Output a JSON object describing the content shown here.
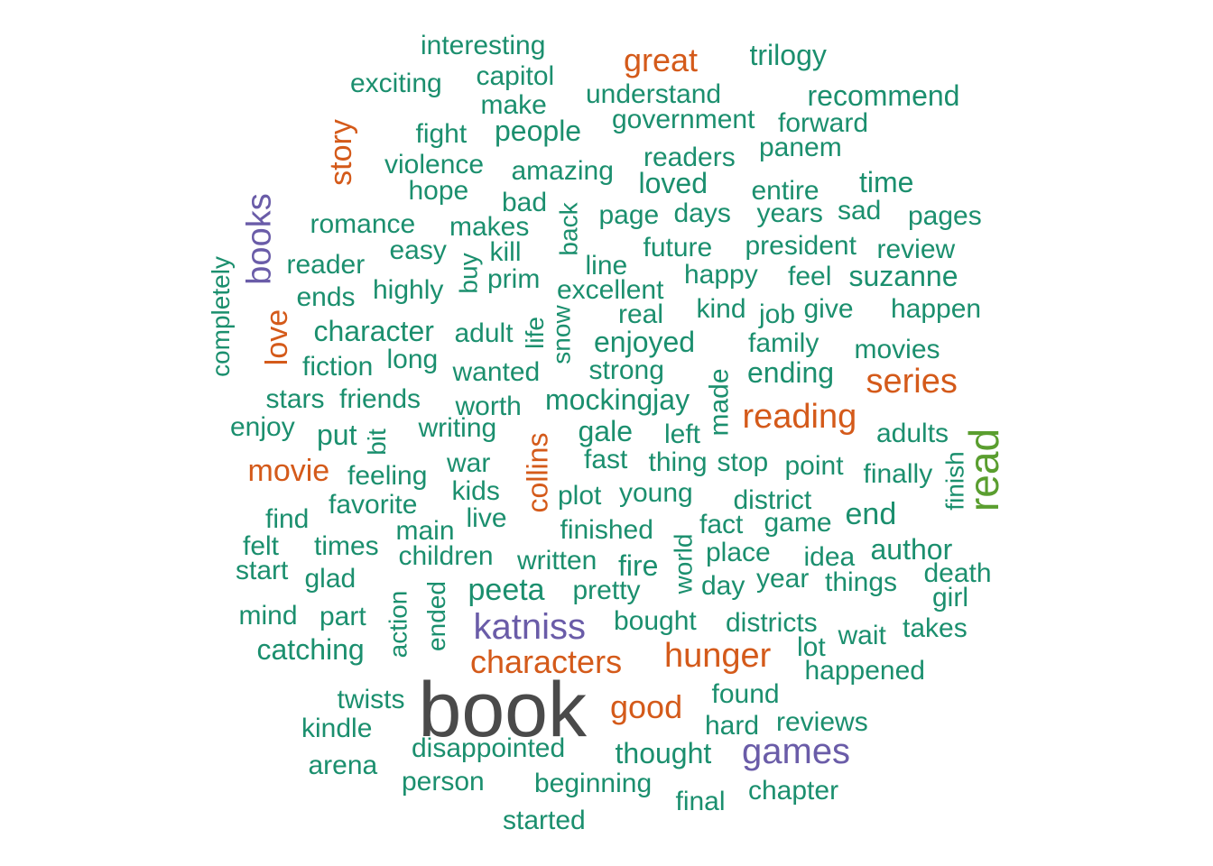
{
  "colors": {
    "teal": "#1B8F6E",
    "orange": "#D45A1A",
    "purple": "#6A5CA8",
    "green": "#5A9E2F",
    "gray": "#4A4A4A"
  },
  "words": [
    {
      "text": "book",
      "color": "gray"
    },
    {
      "text": "read",
      "color": "green"
    },
    {
      "text": "katniss",
      "color": "purple"
    },
    {
      "text": "games",
      "color": "purple"
    },
    {
      "text": "books",
      "color": "purple"
    },
    {
      "text": "hunger",
      "color": "orange"
    },
    {
      "text": "series",
      "color": "orange"
    },
    {
      "text": "reading",
      "color": "orange"
    },
    {
      "text": "characters",
      "color": "orange"
    },
    {
      "text": "good",
      "color": "orange"
    },
    {
      "text": "great",
      "color": "orange"
    },
    {
      "text": "story",
      "color": "orange"
    },
    {
      "text": "love",
      "color": "orange"
    },
    {
      "text": "movie",
      "color": "orange"
    },
    {
      "text": "collins",
      "color": "orange"
    },
    {
      "text": "interesting",
      "color": "teal"
    },
    {
      "text": "trilogy",
      "color": "teal"
    },
    {
      "text": "capitol",
      "color": "teal"
    },
    {
      "text": "exciting",
      "color": "teal"
    },
    {
      "text": "understand",
      "color": "teal"
    },
    {
      "text": "recommend",
      "color": "teal"
    },
    {
      "text": "make",
      "color": "teal"
    },
    {
      "text": "government",
      "color": "teal"
    },
    {
      "text": "forward",
      "color": "teal"
    },
    {
      "text": "fight",
      "color": "teal"
    },
    {
      "text": "people",
      "color": "teal"
    },
    {
      "text": "panem",
      "color": "teal"
    },
    {
      "text": "violence",
      "color": "teal"
    },
    {
      "text": "readers",
      "color": "teal"
    },
    {
      "text": "amazing",
      "color": "teal"
    },
    {
      "text": "time",
      "color": "teal"
    },
    {
      "text": "hope",
      "color": "teal"
    },
    {
      "text": "loved",
      "color": "teal"
    },
    {
      "text": "entire",
      "color": "teal"
    },
    {
      "text": "bad",
      "color": "teal"
    },
    {
      "text": "sad",
      "color": "teal"
    },
    {
      "text": "back",
      "color": "teal"
    },
    {
      "text": "page",
      "color": "teal"
    },
    {
      "text": "days",
      "color": "teal"
    },
    {
      "text": "years",
      "color": "teal"
    },
    {
      "text": "pages",
      "color": "teal"
    },
    {
      "text": "romance",
      "color": "teal"
    },
    {
      "text": "makes",
      "color": "teal"
    },
    {
      "text": "completely",
      "color": "teal"
    },
    {
      "text": "easy",
      "color": "teal"
    },
    {
      "text": "kill",
      "color": "teal"
    },
    {
      "text": "future",
      "color": "teal"
    },
    {
      "text": "president",
      "color": "teal"
    },
    {
      "text": "review",
      "color": "teal"
    },
    {
      "text": "reader",
      "color": "teal"
    },
    {
      "text": "buy",
      "color": "teal"
    },
    {
      "text": "line",
      "color": "teal"
    },
    {
      "text": "happy",
      "color": "teal"
    },
    {
      "text": "feel",
      "color": "teal"
    },
    {
      "text": "suzanne",
      "color": "teal"
    },
    {
      "text": "ends",
      "color": "teal"
    },
    {
      "text": "highly",
      "color": "teal"
    },
    {
      "text": "prim",
      "color": "teal"
    },
    {
      "text": "excellent",
      "color": "teal"
    },
    {
      "text": "real",
      "color": "teal"
    },
    {
      "text": "kind",
      "color": "teal"
    },
    {
      "text": "job",
      "color": "teal"
    },
    {
      "text": "give",
      "color": "teal"
    },
    {
      "text": "happen",
      "color": "teal"
    },
    {
      "text": "character",
      "color": "teal"
    },
    {
      "text": "adult",
      "color": "teal"
    },
    {
      "text": "life",
      "color": "teal"
    },
    {
      "text": "snow",
      "color": "teal"
    },
    {
      "text": "enjoyed",
      "color": "teal"
    },
    {
      "text": "family",
      "color": "teal"
    },
    {
      "text": "movies",
      "color": "teal"
    },
    {
      "text": "fiction",
      "color": "teal"
    },
    {
      "text": "long",
      "color": "teal"
    },
    {
      "text": "wanted",
      "color": "teal"
    },
    {
      "text": "strong",
      "color": "teal"
    },
    {
      "text": "made",
      "color": "teal"
    },
    {
      "text": "ending",
      "color": "teal"
    },
    {
      "text": "stars",
      "color": "teal"
    },
    {
      "text": "friends",
      "color": "teal"
    },
    {
      "text": "worth",
      "color": "teal"
    },
    {
      "text": "mockingjay",
      "color": "teal"
    },
    {
      "text": "enjoy",
      "color": "teal"
    },
    {
      "text": "put",
      "color": "teal"
    },
    {
      "text": "bit",
      "color": "teal"
    },
    {
      "text": "writing",
      "color": "teal"
    },
    {
      "text": "gale",
      "color": "teal"
    },
    {
      "text": "left",
      "color": "teal"
    },
    {
      "text": "adults",
      "color": "teal"
    },
    {
      "text": "finish",
      "color": "teal"
    },
    {
      "text": "war",
      "color": "teal"
    },
    {
      "text": "fast",
      "color": "teal"
    },
    {
      "text": "thing",
      "color": "teal"
    },
    {
      "text": "stop",
      "color": "teal"
    },
    {
      "text": "point",
      "color": "teal"
    },
    {
      "text": "finally",
      "color": "teal"
    },
    {
      "text": "feeling",
      "color": "teal"
    },
    {
      "text": "kids",
      "color": "teal"
    },
    {
      "text": "plot",
      "color": "teal"
    },
    {
      "text": "young",
      "color": "teal"
    },
    {
      "text": "district",
      "color": "teal"
    },
    {
      "text": "favorite",
      "color": "teal"
    },
    {
      "text": "live",
      "color": "teal"
    },
    {
      "text": "end",
      "color": "teal"
    },
    {
      "text": "find",
      "color": "teal"
    },
    {
      "text": "main",
      "color": "teal"
    },
    {
      "text": "finished",
      "color": "teal"
    },
    {
      "text": "fact",
      "color": "teal"
    },
    {
      "text": "game",
      "color": "teal"
    },
    {
      "text": "felt",
      "color": "teal"
    },
    {
      "text": "times",
      "color": "teal"
    },
    {
      "text": "children",
      "color": "teal"
    },
    {
      "text": "world",
      "color": "teal"
    },
    {
      "text": "place",
      "color": "teal"
    },
    {
      "text": "idea",
      "color": "teal"
    },
    {
      "text": "author",
      "color": "teal"
    },
    {
      "text": "start",
      "color": "teal"
    },
    {
      "text": "glad",
      "color": "teal"
    },
    {
      "text": "written",
      "color": "teal"
    },
    {
      "text": "fire",
      "color": "teal"
    },
    {
      "text": "year",
      "color": "teal"
    },
    {
      "text": "things",
      "color": "teal"
    },
    {
      "text": "death",
      "color": "teal"
    },
    {
      "text": "action",
      "color": "teal"
    },
    {
      "text": "ended",
      "color": "teal"
    },
    {
      "text": "peeta",
      "color": "teal"
    },
    {
      "text": "pretty",
      "color": "teal"
    },
    {
      "text": "day",
      "color": "teal"
    },
    {
      "text": "girl",
      "color": "teal"
    },
    {
      "text": "mind",
      "color": "teal"
    },
    {
      "text": "part",
      "color": "teal"
    },
    {
      "text": "bought",
      "color": "teal"
    },
    {
      "text": "districts",
      "color": "teal"
    },
    {
      "text": "wait",
      "color": "teal"
    },
    {
      "text": "takes",
      "color": "teal"
    },
    {
      "text": "catching",
      "color": "teal"
    },
    {
      "text": "lot",
      "color": "teal"
    },
    {
      "text": "happened",
      "color": "teal"
    },
    {
      "text": "twists",
      "color": "teal"
    },
    {
      "text": "found",
      "color": "teal"
    },
    {
      "text": "kindle",
      "color": "teal"
    },
    {
      "text": "hard",
      "color": "teal"
    },
    {
      "text": "reviews",
      "color": "teal"
    },
    {
      "text": "disappointed",
      "color": "teal"
    },
    {
      "text": "thought",
      "color": "teal"
    },
    {
      "text": "arena",
      "color": "teal"
    },
    {
      "text": "person",
      "color": "teal"
    },
    {
      "text": "beginning",
      "color": "teal"
    },
    {
      "text": "chapter",
      "color": "teal"
    },
    {
      "text": "final",
      "color": "teal"
    },
    {
      "text": "started",
      "color": "teal"
    }
  ]
}
